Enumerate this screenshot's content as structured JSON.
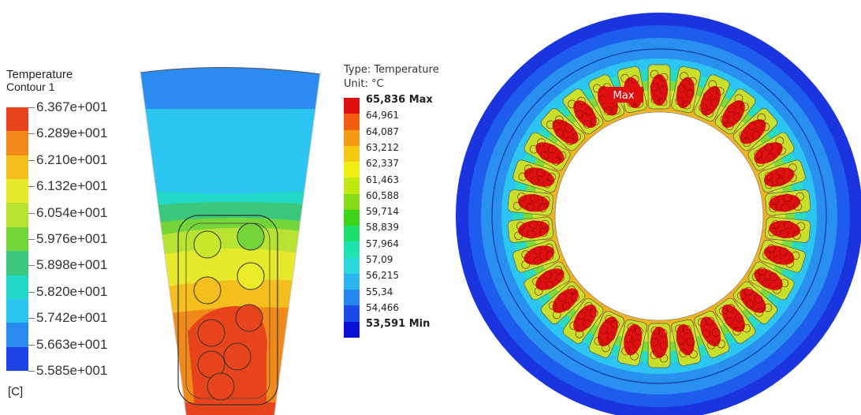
{
  "left_legend": {
    "title": "Temperature",
    "subtitle": "Contour 1",
    "unit": "[C]",
    "labels": [
      "6.367e+001",
      "6.289e+001",
      "6.210e+001",
      "6.132e+001",
      "6.054e+001",
      "5.976e+001",
      "5.898e+001",
      "5.820e+001",
      "5.742e+001",
      "5.663e+001",
      "5.585e+001"
    ],
    "colors": [
      "#e8441c",
      "#f28a1a",
      "#f4be1c",
      "#e6ea2a",
      "#b9e332",
      "#74d53a",
      "#3cc87c",
      "#22d8c6",
      "#2cc4f0",
      "#2a8cf0",
      "#1e44e8"
    ]
  },
  "right_legend": {
    "type_label": "Type: Temperature",
    "unit_label": "Unit: °C",
    "labels": [
      "65,836 Max",
      "64,961",
      "64,087",
      "63,212",
      "62,337",
      "61,463",
      "60,588",
      "59,714",
      "58,839",
      "57,964",
      "57,09",
      "56,215",
      "55,34",
      "54,466",
      "53,591 Min"
    ],
    "colors": [
      "#e01010",
      "#f45a10",
      "#f59a0e",
      "#f4c80c",
      "#f0ee10",
      "#c0ea10",
      "#84dc14",
      "#3ed41a",
      "#1ede6c",
      "#1ee4b0",
      "#2ad8e0",
      "#2ab4f0",
      "#2686ee",
      "#1a4ae8",
      "#0a10d8"
    ]
  },
  "stator_view": {
    "max_label": "Max"
  }
}
